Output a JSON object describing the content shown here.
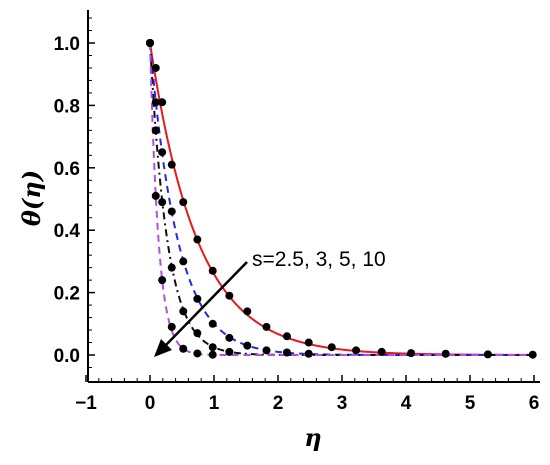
{
  "chart_data": {
    "type": "line",
    "xlabel": "η",
    "ylabel": "θ(η)",
    "xlim": [
      -1,
      6
    ],
    "ylim": [
      -0.05,
      1.1
    ],
    "x_ticks": [
      "−1",
      "0",
      "1",
      "2",
      "3",
      "4",
      "5",
      "6"
    ],
    "y_ticks": [
      "0.0",
      "0.2",
      "0.4",
      "0.6",
      "0.8",
      "1.0"
    ],
    "grid": false,
    "annotation": "s=2.5, 3, 5, 10",
    "series": [
      {
        "s": 2.5,
        "color": "#e8181c",
        "style": "solid",
        "decay": 1.35
      },
      {
        "s": 3,
        "color": "#1c2ee0",
        "style": "dashed",
        "decay": 2.3
      },
      {
        "s": 5,
        "color": "#111111",
        "style": "dashdot",
        "decay": 3.7
      },
      {
        "s": 10,
        "color": "#b04fe0",
        "style": "dashed",
        "decay": 7.5
      }
    ],
    "markers": [
      {
        "s": 2.5,
        "points": [
          [
            0,
            1.0
          ],
          [
            0.09,
            0.92
          ],
          [
            0.19,
            0.81
          ],
          [
            0.34,
            0.61
          ],
          [
            0.52,
            0.49
          ],
          [
            0.74,
            0.37
          ],
          [
            0.98,
            0.27
          ],
          [
            1.24,
            0.19
          ],
          [
            1.52,
            0.14
          ],
          [
            1.82,
            0.09
          ],
          [
            2.14,
            0.06
          ],
          [
            2.48,
            0.04
          ],
          [
            2.84,
            0.025
          ],
          [
            3.22,
            0.015
          ],
          [
            3.62,
            0.01
          ],
          [
            4.08,
            0.006
          ],
          [
            4.62,
            0.004
          ],
          [
            5.28,
            0.002
          ],
          [
            5.98,
            0.001
          ]
        ]
      },
      {
        "s": 3,
        "points": [
          [
            0,
            1.0
          ],
          [
            0.09,
            0.81
          ],
          [
            0.19,
            0.65
          ],
          [
            0.34,
            0.46
          ],
          [
            0.52,
            0.3
          ],
          [
            0.74,
            0.18
          ],
          [
            0.98,
            0.1
          ],
          [
            1.24,
            0.055
          ],
          [
            1.52,
            0.03
          ],
          [
            1.82,
            0.015
          ],
          [
            2.14,
            0.008
          ],
          [
            2.48,
            0.004
          ]
        ]
      },
      {
        "s": 5,
        "points": [
          [
            0,
            1.0
          ],
          [
            0.09,
            0.72
          ],
          [
            0.19,
            0.49
          ],
          [
            0.34,
            0.28
          ],
          [
            0.52,
            0.14
          ],
          [
            0.74,
            0.07
          ],
          [
            0.98,
            0.025
          ],
          [
            1.24,
            0.01
          ]
        ]
      },
      {
        "s": 10,
        "points": [
          [
            0,
            1.0
          ],
          [
            0.09,
            0.51
          ],
          [
            0.19,
            0.24
          ],
          [
            0.34,
            0.09
          ],
          [
            0.52,
            0.02
          ],
          [
            0.74,
            0.005
          ],
          [
            0.98,
            0.001
          ]
        ]
      }
    ]
  }
}
